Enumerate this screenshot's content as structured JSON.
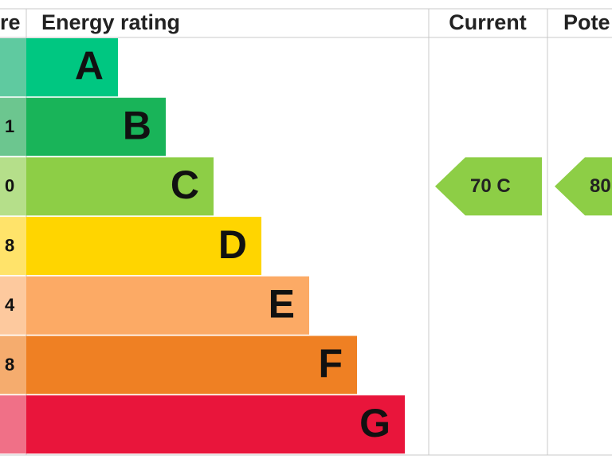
{
  "header": {
    "score": "re",
    "rating": "Energy rating",
    "current": "Current",
    "potential": "Pote"
  },
  "bands": [
    {
      "score": null,
      "letter": "A",
      "color": "#00c781",
      "score_color": "#5fcaa0"
    },
    {
      "score": "1",
      "letter": "B",
      "color": "#19b459",
      "score_color": "#6cc68f"
    },
    {
      "score": "0",
      "letter": "C",
      "color": "#8dce46",
      "score_color": "#b5df8a"
    },
    {
      "score": "8",
      "letter": "D",
      "color": "#ffd500",
      "score_color": "#ffe36a"
    },
    {
      "score": "4",
      "letter": "E",
      "color": "#fcaa65",
      "score_color": "#fdc99e"
    },
    {
      "score": "8",
      "letter": "F",
      "color": "#ef8023",
      "score_color": "#f5ac6e"
    },
    {
      "score": null,
      "letter": "G",
      "color": "#e9153b",
      "score_color": "#f07087"
    }
  ],
  "current": {
    "label": "70  C",
    "band": 2
  },
  "potential": {
    "label": "80",
    "band": 2
  }
}
